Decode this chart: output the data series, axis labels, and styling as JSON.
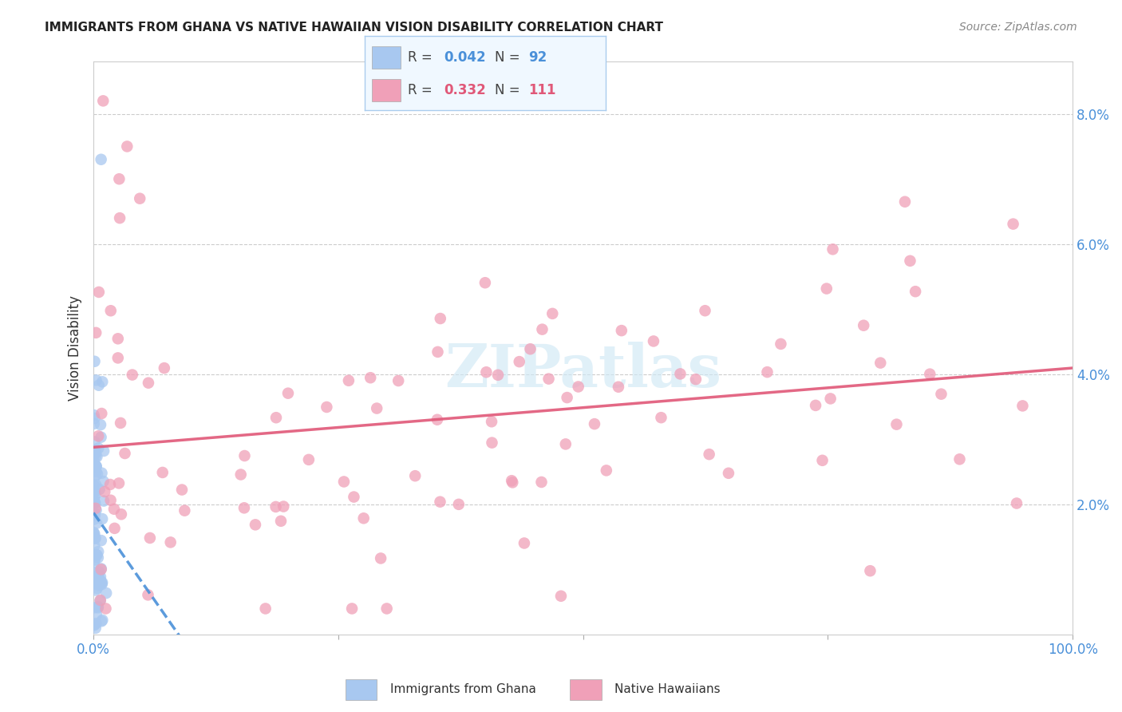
{
  "title": "IMMIGRANTS FROM GHANA VS NATIVE HAWAIIAN VISION DISABILITY CORRELATION CHART",
  "source": "Source: ZipAtlas.com",
  "ylabel": "Vision Disability",
  "xlim": [
    0,
    1.0
  ],
  "ylim": [
    0,
    0.088
  ],
  "xtick_positions": [
    0,
    0.25,
    0.5,
    0.75,
    1.0
  ],
  "xtick_labels": [
    "0.0%",
    "",
    "",
    "",
    "100.0%"
  ],
  "ytick_positions": [
    0.02,
    0.04,
    0.06,
    0.08
  ],
  "ytick_labels": [
    "2.0%",
    "4.0%",
    "6.0%",
    "8.0%"
  ],
  "ghana_color": "#a8c8f0",
  "hawaii_color": "#f0a0b8",
  "ghana_line_color": "#4a90d9",
  "hawaii_line_color": "#e05878",
  "legend_ghana_label": "Immigrants from Ghana",
  "legend_hawaii_label": "Native Hawaiians",
  "r_ghana": 0.042,
  "n_ghana": 92,
  "r_hawaii": 0.332,
  "n_hawaii": 111,
  "background_color": "#ffffff",
  "grid_color": "#cccccc",
  "axis_color": "#4a90d9",
  "watermark_color": "#d0e8f5",
  "title_color": "#222222",
  "source_color": "#888888",
  "ylabel_color": "#333333"
}
